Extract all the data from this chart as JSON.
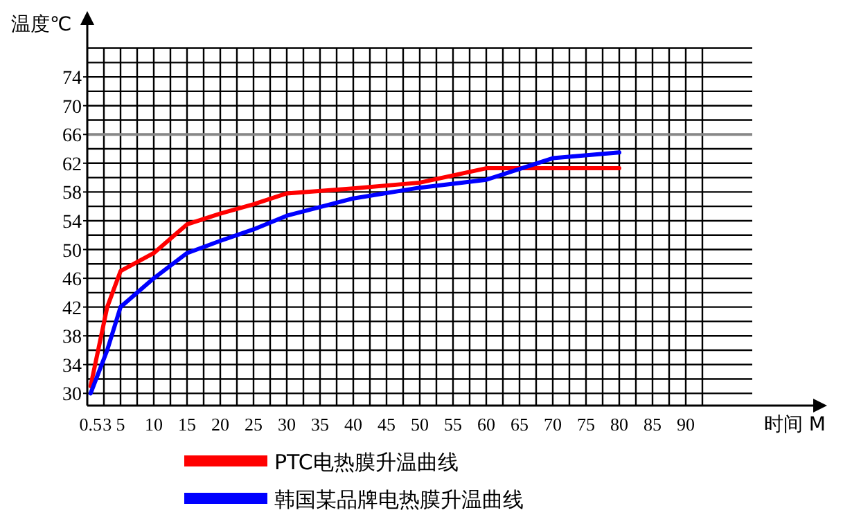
{
  "chart_data": {
    "type": "line",
    "xlabel": "时间 M",
    "ylabel": "温度℃",
    "xlim": [
      0,
      110
    ],
    "ylim": [
      28.3,
      82
    ],
    "xticks": [
      0.5,
      3,
      5,
      10,
      15,
      20,
      25,
      30,
      35,
      40,
      45,
      50,
      55,
      60,
      65,
      70,
      75,
      80,
      85,
      90
    ],
    "yticks": [
      30,
      34,
      38,
      42,
      46,
      50,
      54,
      58,
      62,
      66,
      70,
      74
    ],
    "grid": true,
    "legend": "bottom",
    "marker": "none",
    "line_style": "solid",
    "ref_lines": [
      {
        "axis": "y",
        "value": 66,
        "color": "#888888"
      }
    ],
    "series": [
      {
        "name": "PTC电热膜升温曲线",
        "color": "#ff0000",
        "x": [
          0.5,
          3,
          5,
          10,
          15,
          20,
          25,
          30,
          40,
          50,
          60,
          70,
          80
        ],
        "values": [
          31,
          42,
          47,
          49.5,
          53.5,
          55,
          56.3,
          57.8,
          58.5,
          59.3,
          61.3,
          61.3,
          61.3
        ]
      },
      {
        "name": "韩国某品牌电热膜升温曲线",
        "color": "#0000ff",
        "x": [
          0.5,
          3,
          5,
          10,
          15,
          20,
          25,
          30,
          40,
          50,
          60,
          70,
          80
        ],
        "values": [
          30,
          36,
          42,
          46,
          49.5,
          51.2,
          52.8,
          54.7,
          57.1,
          58.6,
          59.7,
          62.7,
          63.5
        ]
      }
    ]
  }
}
